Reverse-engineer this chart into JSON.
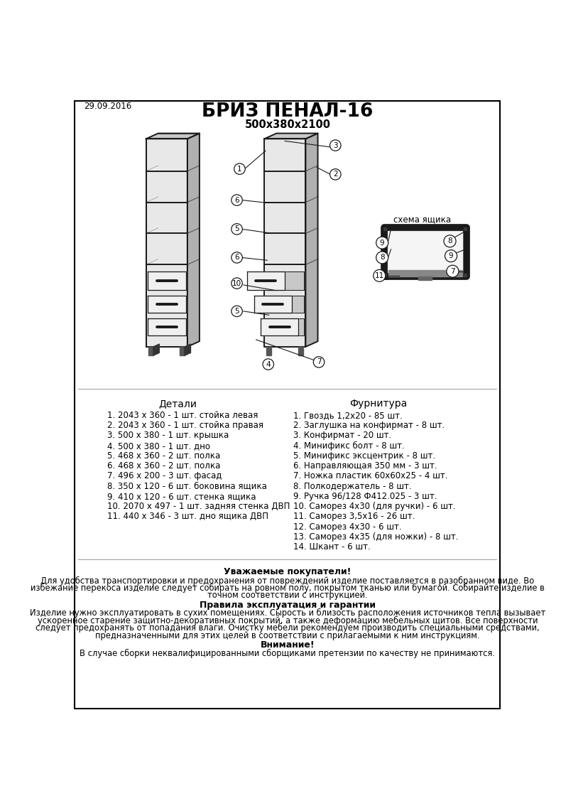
{
  "title": "БРИЗ ПЕНАЛ-16",
  "subtitle": "500x380x2100",
  "date": "29.09.2016",
  "bg_color": "#ffffff",
  "border_color": "#000000",
  "details_header": "Детали",
  "hardware_header": "Фурнитура",
  "details": [
    "1. 2043 х 360 - 1 шт. стойка левая",
    "2. 2043 х 360 - 1 шт. стойка правая",
    "3. 500 х 380 - 1 шт. крышка",
    "4. 500 х 380 - 1 шт. дно",
    "5. 468 х 360 - 2 шт. полка",
    "6. 468 х 360 - 2 шт. полка",
    "7. 496 х 200 - 3 шт. фасад",
    "8. 350 х 120 - 6 шт. боковина ящика",
    "9. 410 х 120 - 6 шт. стенка ящика",
    "10. 2070 х 497 - 1 шт. задняя стенка ДВП",
    "11. 440 х 346 - 3 шт. дно ящика ДВП"
  ],
  "hardware": [
    "1. Гвоздь 1,2х20 - 85 шт.",
    "2. Заглушка на конфирмат - 8 шт.",
    "3. Конфирмат - 20 шт.",
    "4. Минификс болт - 8 шт.",
    "5. Минификс эксцентрик - 8 шт.",
    "6. Направляющая 350 мм - 3 шт.",
    "7. Ножка пластик 60х60х25 - 4 шт.",
    "8. Полкодержатель - 8 шт.",
    "9. Ручка 96/128 Ф412.025 - 3 шт.",
    "10. Саморез 4х30 (для ручки) - 6 шт.",
    "11. Саморез 3,5х16 - 26 шт.",
    "12. Саморез 4х30 - 6 шт.",
    "13. Саморез 4х35 (для ножки) - 8 шт.",
    "14. Шкант - 6 шт."
  ],
  "notice_title": "Уважаемые покупатели!",
  "notice_lines": [
    "Для удобства транспортировки и предохранения от повреждений изделие поставляется в разобранном виде. Во",
    "избежание перекоса изделие следует собирать на ровном полу, покрытом тканью или бумагой. Собирайте изделие в",
    "точном соответствии с инструкцией."
  ],
  "rules_title": "Правила эксплуатация и гарантии",
  "rules_lines": [
    "Изделие нужно эксплуатировать в сухих помещениях. Сырость и близость расположения источников тепла вызывает",
    "ускоренное старение защитно-декоративных покрытий, а также деформацию мебельных щитов. Все поверхности",
    "следует предохранять от попадания влаги. Очистку мебели рекомендуем производить специальными средствами,",
    "предназначенными для этих целей в соответствии с прилагаемыми к ним инструкциям."
  ],
  "warning_title": "Внимание!",
  "warning_text": "В случае сборки неквалифицированными сборщиками претензии по качеству не принимаются.",
  "schema_label": "схема ящика"
}
